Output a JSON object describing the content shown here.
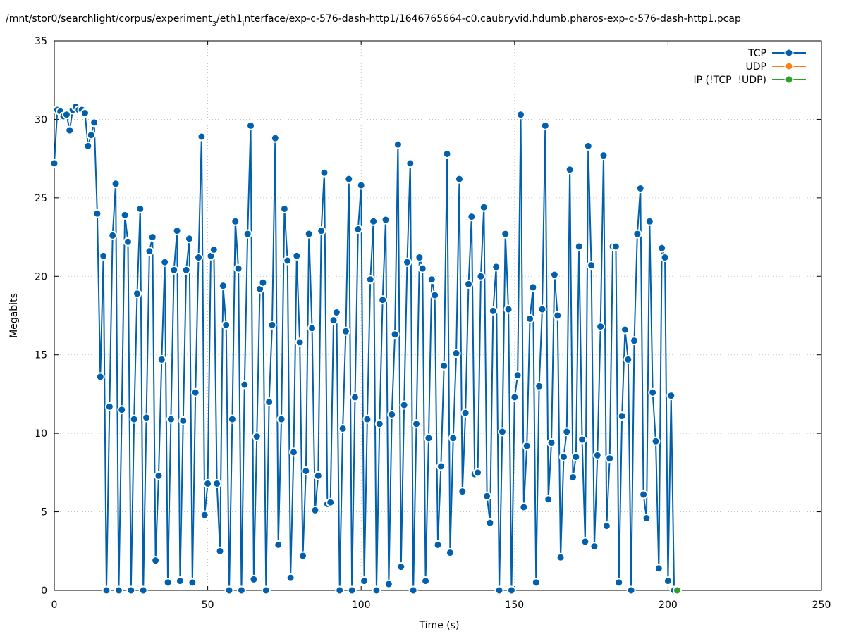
{
  "chart_data": {
    "type": "line",
    "title_parts": [
      "/mnt/stor0/searchlight/corpus/experiment",
      "3",
      "/eth1",
      "i",
      "nterface/exp-c-576-dash-http1/1646765664-c0.caubryvid.hdumb.pharos-exp-c-576-dash-http1.pcap"
    ],
    "x_label": "Time (s)",
    "y_label": "Megabits",
    "xlim": [
      0,
      250
    ],
    "xticks": [
      0,
      50,
      100,
      150,
      200,
      250
    ],
    "ylim": [
      0,
      35
    ],
    "yticks": [
      0,
      5,
      10,
      15,
      20,
      25,
      30,
      35
    ],
    "grid": true,
    "legend": "top-right",
    "series": [
      {
        "name": "TCP",
        "color": "#0060ad",
        "x": [
          0,
          1,
          2,
          3,
          4,
          5,
          6,
          7,
          8,
          9,
          10,
          11,
          12,
          13,
          14,
          15,
          16,
          17,
          18,
          19,
          20,
          21,
          22,
          23,
          24,
          25,
          26,
          27,
          28,
          29,
          30,
          31,
          32,
          33,
          34,
          35,
          36,
          37,
          38,
          39,
          40,
          41,
          42,
          43,
          44,
          45,
          46,
          47,
          48,
          49,
          50,
          51,
          52,
          53,
          54,
          55,
          56,
          57,
          58,
          59,
          60,
          61,
          62,
          63,
          64,
          65,
          66,
          67,
          68,
          69,
          70,
          71,
          72,
          73,
          74,
          75,
          76,
          77,
          78,
          79,
          80,
          81,
          82,
          83,
          84,
          85,
          86,
          87,
          88,
          89,
          90,
          91,
          92,
          93,
          94,
          95,
          96,
          97,
          98,
          99,
          100,
          101,
          102,
          103,
          104,
          105,
          106,
          107,
          108,
          109,
          110,
          111,
          112,
          113,
          114,
          115,
          116,
          117,
          118,
          119,
          120,
          121,
          122,
          123,
          124,
          125,
          126,
          127,
          128,
          129,
          130,
          131,
          132,
          133,
          134,
          135,
          136,
          137,
          138,
          139,
          140,
          141,
          142,
          143,
          144,
          145,
          146,
          147,
          148,
          149,
          150,
          151,
          152,
          153,
          154,
          155,
          156,
          157,
          158,
          159,
          160,
          161,
          162,
          163,
          164,
          165,
          166,
          167,
          168,
          169,
          170,
          171,
          172,
          173,
          174,
          175,
          176,
          177,
          178,
          179,
          180,
          181,
          182,
          183,
          184,
          185,
          186,
          187,
          188,
          189,
          190,
          191,
          192,
          193,
          194,
          195,
          196,
          197,
          198,
          199,
          200,
          201,
          202
        ],
        "values": [
          27.2,
          30.6,
          30.5,
          30.2,
          30.3,
          29.3,
          30.6,
          30.8,
          30.6,
          30.6,
          30.4,
          28.3,
          29.0,
          29.8,
          24.0,
          13.6,
          21.3,
          0,
          11.7,
          22.6,
          25.9,
          0,
          11.5,
          23.9,
          22.2,
          0,
          10.9,
          18.9,
          24.3,
          0,
          11.0,
          21.6,
          22.5,
          1.9,
          7.3,
          14.7,
          20.9,
          0.5,
          10.9,
          20.4,
          22.9,
          0.6,
          10.8,
          20.4,
          22.4,
          0.5,
          12.6,
          21.2,
          28.9,
          4.8,
          6.8,
          21.3,
          21.7,
          6.8,
          2.5,
          19.4,
          16.9,
          0,
          10.9,
          23.5,
          20.5,
          0,
          13.1,
          22.7,
          29.6,
          0.7,
          9.8,
          19.2,
          19.6,
          0,
          12.0,
          16.9,
          28.8,
          2.9,
          10.9,
          24.3,
          21.0,
          0.8,
          8.8,
          21.3,
          15.8,
          2.2,
          7.6,
          22.7,
          16.7,
          5.1,
          7.3,
          22.9,
          26.6,
          5.5,
          5.6,
          17.2,
          17.7,
          0,
          10.3,
          16.5,
          26.2,
          0,
          12.3,
          23.0,
          25.8,
          0.6,
          10.9,
          19.8,
          23.5,
          0,
          10.6,
          18.5,
          23.6,
          0.4,
          11.2,
          16.3,
          28.4,
          1.5,
          11.8,
          20.9,
          27.2,
          0,
          10.6,
          21.2,
          20.5,
          0.6,
          9.7,
          19.8,
          18.8,
          2.9,
          7.9,
          14.3,
          27.8,
          2.4,
          9.7,
          15.1,
          26.2,
          6.3,
          11.3,
          19.5,
          23.8,
          7.4,
          7.5,
          20.0,
          24.4,
          6.0,
          4.3,
          17.8,
          20.6,
          0,
          10.1,
          22.7,
          17.9,
          0,
          12.3,
          13.7,
          30.3,
          5.3,
          9.2,
          17.3,
          19.3,
          0.5,
          13.0,
          17.9,
          29.6,
          5.8,
          9.4,
          20.1,
          17.5,
          2.1,
          8.5,
          10.1,
          26.8,
          7.2,
          8.5,
          21.9,
          9.6,
          3.1,
          28.3,
          20.7,
          2.8,
          8.6,
          16.8,
          27.7,
          4.1,
          8.4,
          21.9,
          21.9,
          0.5,
          11.1,
          16.6,
          14.7,
          0,
          15.9,
          22.7,
          25.6,
          6.1,
          4.6,
          23.5,
          12.6,
          9.5,
          1.4,
          21.8,
          21.2,
          0.6,
          12.4,
          0
        ]
      },
      {
        "name": "UDP",
        "color": "#ff7f0e",
        "x": [
          203
        ],
        "values": [
          0
        ]
      },
      {
        "name": "IP (!TCP  !UDP)",
        "color": "#2ca02c",
        "x": [
          203
        ],
        "values": [
          0
        ]
      }
    ]
  }
}
